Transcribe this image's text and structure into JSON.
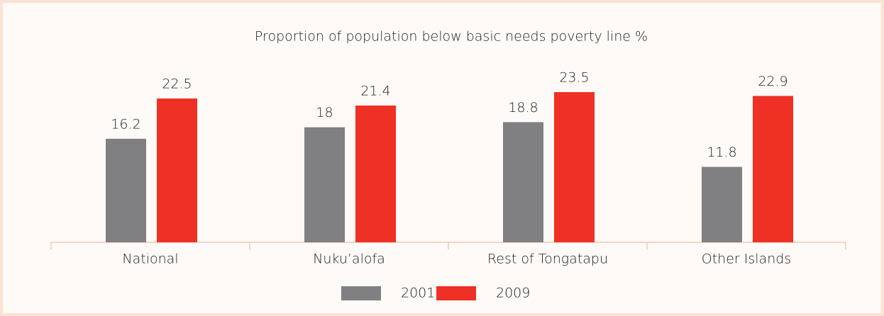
{
  "chart_data": {
    "type": "bar",
    "title": "Proportion of population below basic needs poverty line %",
    "categories": [
      "National",
      "Nuku’alofa",
      "Rest of Tongatapu",
      "Other Islands"
    ],
    "series": [
      {
        "name": "2001",
        "color": "#808083",
        "values": [
          16.2,
          18,
          18.8,
          11.8
        ]
      },
      {
        "name": "2009",
        "color": "#ee3124",
        "values": [
          22.5,
          21.4,
          23.5,
          22.9
        ]
      }
    ]
  }
}
